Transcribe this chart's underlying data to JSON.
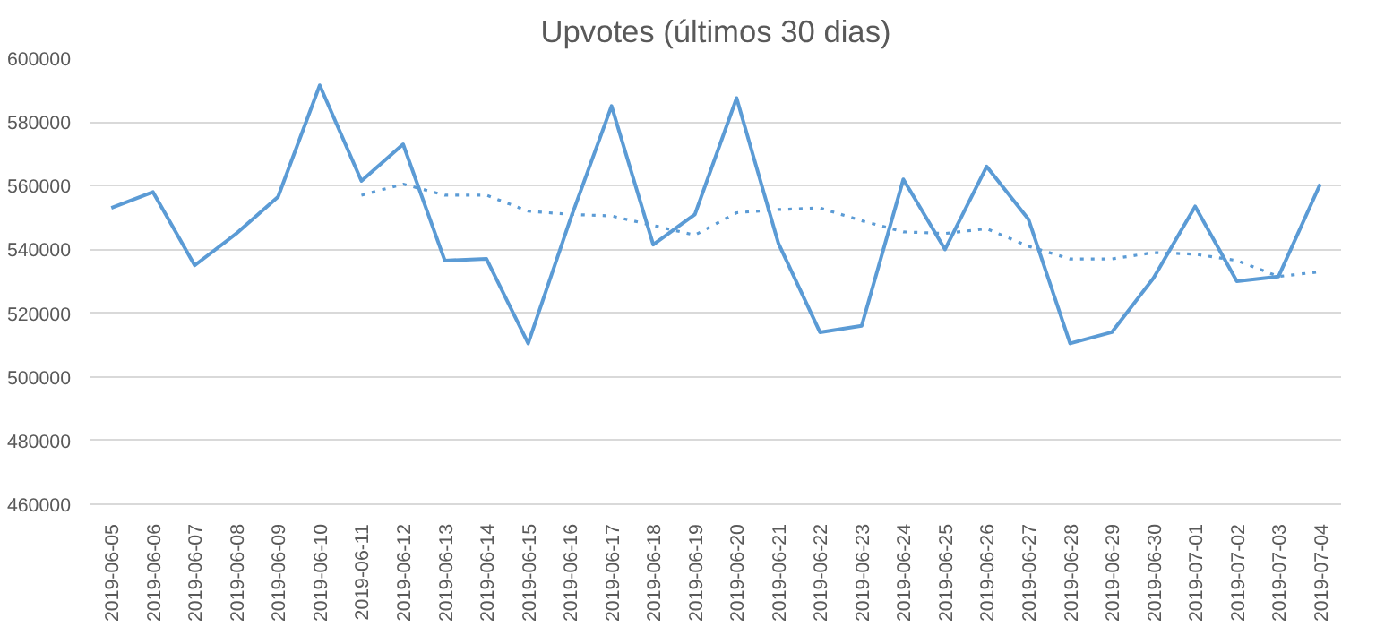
{
  "chart_data": {
    "type": "line",
    "title": "Upvotes (últimos 30 dias)",
    "categories": [
      "2019-06-05",
      "2019-06-06",
      "2019-06-07",
      "2019-06-08",
      "2019-06-09",
      "2019-06-10",
      "2019-06-11",
      "2019-06-12",
      "2019-06-13",
      "2019-06-14",
      "2019-06-15",
      "2019-06-16",
      "2019-06-17",
      "2019-06-18",
      "2019-06-19",
      "2019-06-20",
      "2019-06-21",
      "2019-06-22",
      "2019-06-23",
      "2019-06-24",
      "2019-06-25",
      "2019-06-26",
      "2019-06-27",
      "2019-06-28",
      "2019-06-29",
      "2019-06-30",
      "2019-07-01",
      "2019-07-02",
      "2019-07-03",
      "2019-07-04"
    ],
    "series": [
      {
        "color": "#5b9bd5",
        "line_style": "solid",
        "values": [
          553000,
          558000,
          535000,
          545000,
          556500,
          591500,
          561500,
          573000,
          536500,
          537000,
          510500,
          549000,
          585000,
          541500,
          551000,
          587500,
          542000,
          514000,
          516000,
          562000,
          540000,
          566000,
          549500,
          510500,
          514000,
          531000,
          553500,
          530000,
          531500,
          560500
        ]
      },
      {
        "color": "#5b9bd5",
        "line_style": "dotted",
        "values": [
          null,
          null,
          null,
          null,
          null,
          null,
          557000,
          560500,
          557000,
          557000,
          552000,
          551000,
          550500,
          547500,
          544500,
          551500,
          552500,
          553000,
          549000,
          545500,
          545000,
          546500,
          541000,
          537000,
          537000,
          539000,
          538500,
          536500,
          531500,
          533000
        ]
      }
    ],
    "ylim": [
      460000,
      600000
    ],
    "yticks": [
      460000,
      480000,
      500000,
      520000,
      540000,
      560000,
      580000,
      600000
    ],
    "grid": "y",
    "marker": "none"
  }
}
